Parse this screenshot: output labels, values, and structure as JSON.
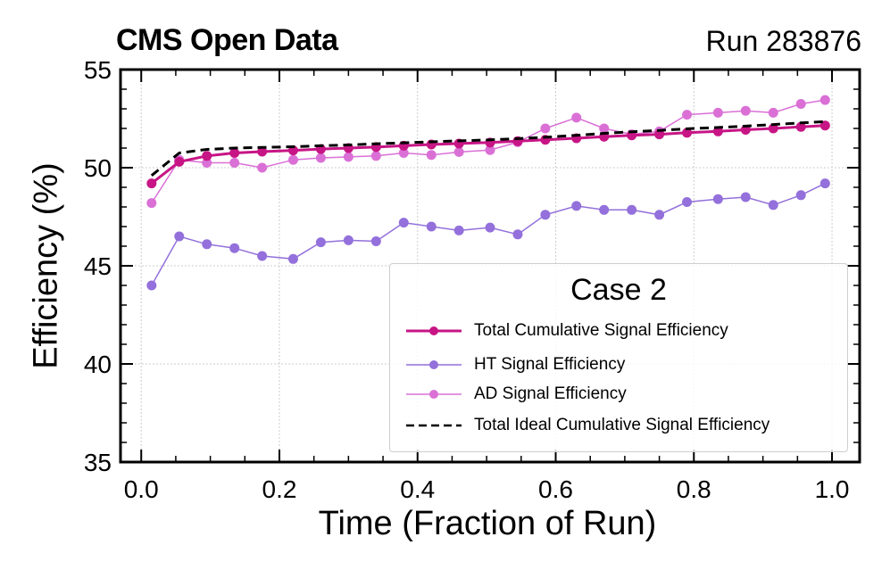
{
  "header": {
    "left": "CMS Open Data",
    "right": "Run 283876"
  },
  "chart_data": {
    "type": "line",
    "title": "",
    "xlabel": "Time (Fraction of Run)",
    "ylabel": "Efficiency (%)",
    "xlim": [
      -0.03,
      1.04
    ],
    "ylim": [
      35,
      55
    ],
    "xticks": [
      0.0,
      0.2,
      0.4,
      0.6,
      0.8,
      1.0
    ],
    "xtick_labels": [
      "0.0",
      "0.2",
      "0.4",
      "0.6",
      "0.8",
      "1.0"
    ],
    "yticks": [
      35,
      40,
      45,
      50,
      55
    ],
    "ytick_labels": [
      "35",
      "40",
      "45",
      "50",
      "55"
    ],
    "grid": true,
    "legend_title": "Case 2",
    "legend_position": "lower-right",
    "x": [
      0.015,
      0.055,
      0.095,
      0.135,
      0.175,
      0.22,
      0.26,
      0.3,
      0.34,
      0.38,
      0.42,
      0.46,
      0.505,
      0.545,
      0.585,
      0.63,
      0.67,
      0.71,
      0.75,
      0.79,
      0.835,
      0.875,
      0.915,
      0.955,
      0.99
    ],
    "series": [
      {
        "name": "Total Cumulative Signal Efficiency",
        "color": "#c71585",
        "style": "solid-marker",
        "values": [
          49.2,
          50.3,
          50.6,
          50.75,
          50.82,
          50.88,
          50.95,
          51.0,
          51.05,
          51.12,
          51.18,
          51.23,
          51.28,
          51.35,
          51.42,
          51.5,
          51.58,
          51.65,
          51.7,
          51.78,
          51.85,
          51.93,
          52.0,
          52.08,
          52.15
        ]
      },
      {
        "name": "HT Signal Efficiency",
        "color": "#9370db",
        "style": "thin-marker",
        "values": [
          44.0,
          46.5,
          46.1,
          45.9,
          45.5,
          45.35,
          46.2,
          46.3,
          46.25,
          47.2,
          47.0,
          46.8,
          46.95,
          46.6,
          47.6,
          48.05,
          47.85,
          47.85,
          47.6,
          48.25,
          48.4,
          48.5,
          48.1,
          48.6,
          49.2
        ]
      },
      {
        "name": "AD Signal Efficiency",
        "color": "#da70d6",
        "style": "thin-marker",
        "values": [
          48.2,
          50.4,
          50.25,
          50.25,
          50.0,
          50.4,
          50.5,
          50.55,
          50.6,
          50.75,
          50.65,
          50.8,
          50.9,
          51.3,
          52.0,
          52.55,
          52.0,
          51.7,
          51.85,
          52.7,
          52.8,
          52.9,
          52.8,
          53.25,
          53.45
        ]
      },
      {
        "name": "Total Ideal Cumulative Signal Efficiency",
        "color": "#000000",
        "style": "dashed",
        "values": [
          49.6,
          50.75,
          50.93,
          51.0,
          51.03,
          51.07,
          51.12,
          51.16,
          51.22,
          51.27,
          51.32,
          51.37,
          51.42,
          51.48,
          51.55,
          51.65,
          51.75,
          51.83,
          51.9,
          51.98,
          52.05,
          52.12,
          52.2,
          52.28,
          52.35
        ]
      }
    ]
  }
}
